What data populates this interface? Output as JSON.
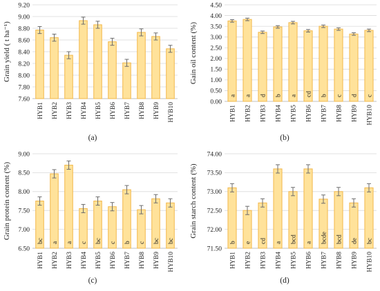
{
  "colors": {
    "bar_fill": "#FFE29A",
    "bar_stroke": "#F2B84B",
    "grid": "#d9d9d9",
    "axis": "#bfbfbf",
    "error_bar": "#6d6d6d",
    "text": "#222222"
  },
  "chart_data": [
    {
      "type": "bar",
      "caption": "(a)",
      "ylabel": "Grain yield ( t ha⁻¹)",
      "categories": [
        "HYB1",
        "HYB2",
        "HYB3",
        "HYB4",
        "HYB5",
        "HYB6",
        "HYB7",
        "HYB8",
        "HYB9",
        "HYB10"
      ],
      "values": [
        8.77,
        8.64,
        8.34,
        8.93,
        8.86,
        8.57,
        8.21,
        8.73,
        8.66,
        8.45
      ],
      "errors": [
        0.06,
        0.06,
        0.06,
        0.06,
        0.06,
        0.06,
        0.06,
        0.06,
        0.06,
        0.06
      ],
      "letters": [],
      "ylim": [
        7.6,
        9.2
      ],
      "yticks": [
        "7.60",
        "7.80",
        "8.00",
        "8.20",
        "8.40",
        "8.60",
        "8.80",
        "9.00",
        "9.20"
      ],
      "grid": true
    },
    {
      "type": "bar",
      "caption": "(b)",
      "ylabel": "Gain oil content (%)",
      "categories": [
        "HYB1",
        "HYB2",
        "HYB3",
        "HYB4",
        "HYB5",
        "HYB6",
        "HYB7",
        "HYB8",
        "HYB9",
        "HYB10"
      ],
      "values": [
        3.75,
        3.82,
        3.22,
        3.47,
        3.67,
        3.29,
        3.5,
        3.37,
        3.14,
        3.31
      ],
      "errors": [
        0.06,
        0.06,
        0.06,
        0.06,
        0.06,
        0.06,
        0.06,
        0.06,
        0.06,
        0.06
      ],
      "letters": [
        "a",
        "a",
        "d",
        "b",
        "a",
        "cd",
        "b",
        "c",
        "d",
        "c"
      ],
      "ylim": [
        0,
        4.5
      ],
      "yticks": [
        "0.00",
        "0.50",
        "1.00",
        "1.50",
        "2.00",
        "2.50",
        "3.00",
        "3.50",
        "4.00",
        "4.50"
      ],
      "grid": true
    },
    {
      "type": "bar",
      "caption": "(c)",
      "ylabel": "Grain protein content (%)",
      "categories": [
        "HYB1",
        "HYB2",
        "HYB3",
        "HYB4",
        "HYB5",
        "HYB6",
        "HYB7",
        "HYB8",
        "HYB9",
        "HYB10"
      ],
      "values": [
        7.75,
        8.47,
        8.7,
        7.55,
        7.75,
        7.6,
        8.05,
        7.52,
        7.81,
        7.7
      ],
      "errors": [
        0.11,
        0.11,
        0.11,
        0.11,
        0.11,
        0.11,
        0.11,
        0.11,
        0.11,
        0.11
      ],
      "letters": [
        "bc",
        "a",
        "a",
        "c",
        "bc",
        "c",
        "b",
        "c",
        "bc",
        "bc"
      ],
      "ylim": [
        6.5,
        9.0
      ],
      "yticks": [
        "6.50",
        "7.00",
        "7.50",
        "8.00",
        "8.50",
        "9.00"
      ],
      "grid": true
    },
    {
      "type": "bar",
      "caption": "(d)",
      "ylabel": "Grain starch content (%)",
      "categories": [
        "HYB1",
        "HYB2",
        "HYB3",
        "HYB4",
        "HYB5",
        "HYB6",
        "HYB7",
        "HYB8",
        "HYB9",
        "HYB10"
      ],
      "values": [
        73.1,
        72.5,
        72.7,
        73.6,
        73.0,
        73.6,
        72.8,
        73.0,
        72.7,
        73.1
      ],
      "errors": [
        0.11,
        0.11,
        0.11,
        0.11,
        0.11,
        0.11,
        0.11,
        0.11,
        0.11,
        0.11
      ],
      "letters": [
        "b",
        "e",
        "cd",
        "a",
        "bcd",
        "a",
        "bcde",
        "bcd",
        "de",
        "bc"
      ],
      "ylim": [
        71.5,
        74.0
      ],
      "yticks": [
        "71.50",
        "72.00",
        "72.50",
        "73.00",
        "73.50",
        "74.00"
      ],
      "grid": true
    }
  ]
}
